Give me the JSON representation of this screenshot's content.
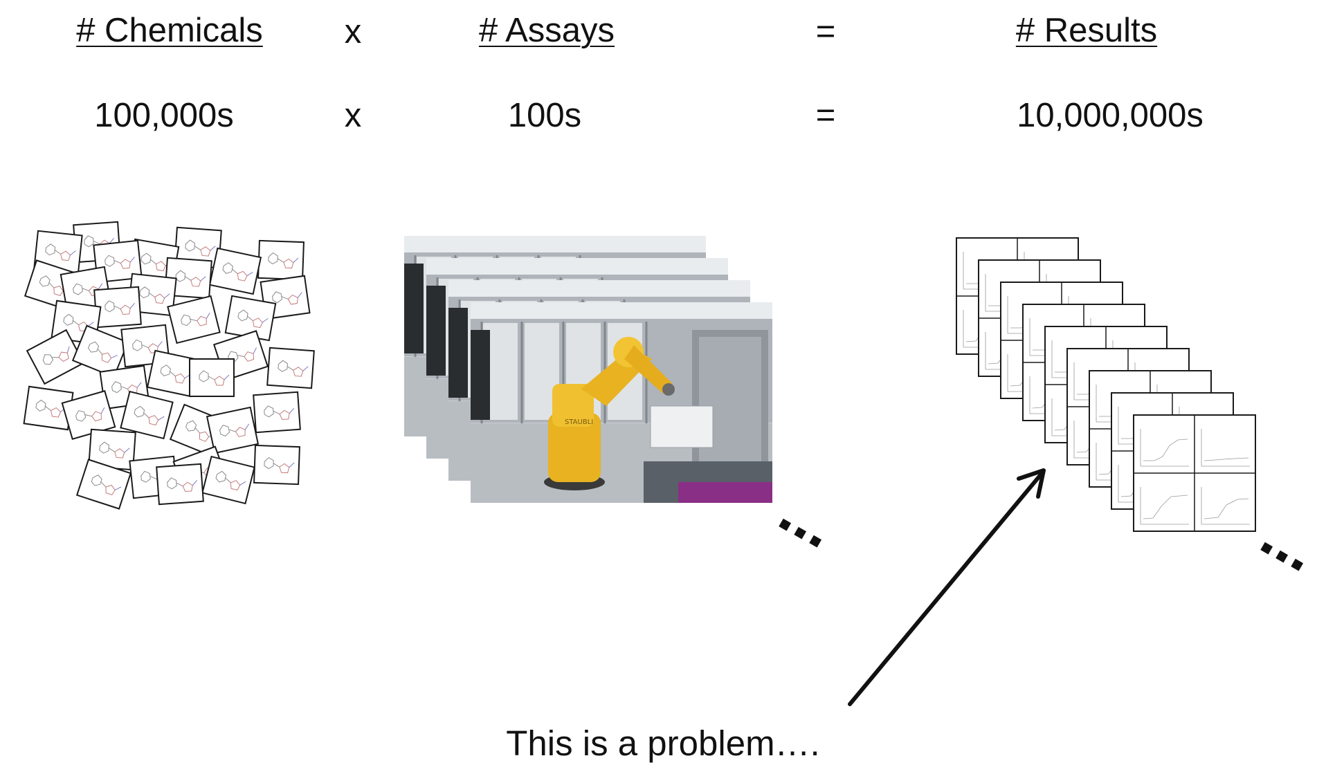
{
  "header_row": {
    "chemicals_label": "# Chemicals",
    "times_1": "x",
    "assays_label": "# Assays",
    "equals_1": "=",
    "results_label": "# Results"
  },
  "value_row": {
    "chemicals_value": "100,000s",
    "times_2": "x",
    "assays_value": "100s",
    "equals_2": "=",
    "results_value": "10,000,000s"
  },
  "caption": "This is a problem….",
  "icons": {
    "chemicals": "chemical-structure-cards-icon",
    "assays": "robot-lab-photo-stack-icon",
    "results": "result-sheet-stack-icon",
    "continuation": "ellipsis-icon",
    "pointer": "arrow-icon"
  },
  "colors": {
    "robot_yellow": "#e8b221",
    "lab_gray": "#b9bec4",
    "purple_accent": "#8a2f86"
  }
}
